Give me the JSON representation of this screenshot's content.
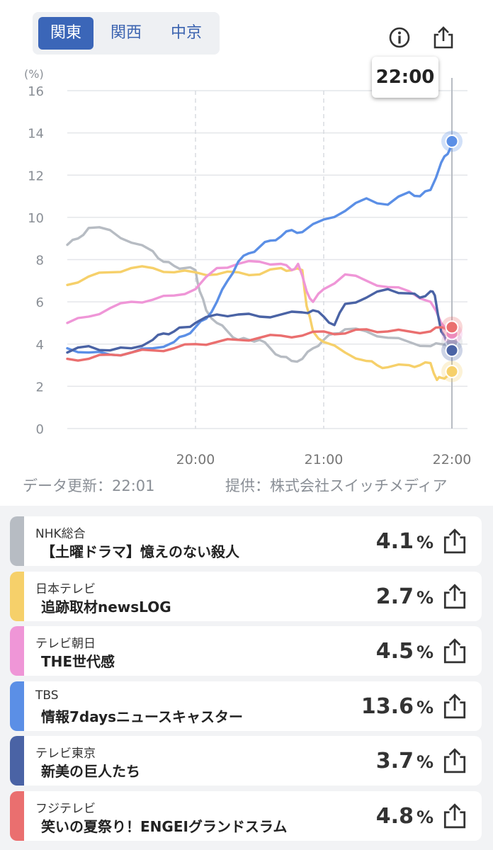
{
  "tabs": [
    "関東",
    "関西",
    "中京"
  ],
  "active_tab": 0,
  "icons": {
    "info": "info-icon",
    "share": "share-icon"
  },
  "tooltip": "22:00",
  "footer": {
    "updated": "データ更新：22:01",
    "provider": "提供：株式会社スイッチメディア"
  },
  "chart_data": {
    "type": "line",
    "ylabel": "(%)",
    "ylim": [
      0,
      16
    ],
    "yticks": [
      0,
      2,
      4,
      6,
      8,
      10,
      12,
      14,
      16
    ],
    "xticks": [
      "20:00",
      "21:00",
      "22:00"
    ],
    "x_range": [
      "19:00",
      "22:00"
    ],
    "grid": true,
    "series": [
      {
        "name": "NHK総合",
        "color": "#b7bcc3",
        "x": [
          0,
          5,
          10,
          20,
          30,
          40,
          45,
          50,
          55,
          60,
          62,
          65,
          70,
          75,
          80,
          85,
          90,
          95,
          100,
          105,
          110,
          115,
          120,
          125,
          130,
          140,
          150,
          160,
          170,
          175,
          180
        ],
        "y": [
          8.7,
          9.0,
          9.5,
          9.4,
          8.8,
          8.4,
          7.9,
          7.7,
          7.6,
          7.5,
          6.5,
          5.6,
          5.0,
          4.6,
          4.2,
          4.2,
          4.2,
          3.8,
          3.4,
          3.2,
          3.3,
          3.8,
          4.2,
          4.5,
          4.7,
          4.6,
          4.3,
          4.1,
          3.9,
          4.0,
          4.1
        ]
      },
      {
        "name": "日本テレビ",
        "color": "#f6d06a",
        "x": [
          0,
          10,
          20,
          30,
          40,
          50,
          60,
          70,
          80,
          90,
          100,
          105,
          110,
          112,
          115,
          120,
          130,
          140,
          145,
          150,
          160,
          165,
          170,
          173,
          175,
          178,
          180
        ],
        "y": [
          6.8,
          7.2,
          7.4,
          7.6,
          7.6,
          7.4,
          7.4,
          7.3,
          7.4,
          7.3,
          7.6,
          7.5,
          7.5,
          5.8,
          4.6,
          4.1,
          3.6,
          3.2,
          3.0,
          2.9,
          3.0,
          3.0,
          3.1,
          2.3,
          2.4,
          2.5,
          2.7
        ]
      },
      {
        "name": "テレビ朝日",
        "color": "#ef96d7",
        "x": [
          0,
          10,
          20,
          30,
          40,
          50,
          60,
          70,
          80,
          90,
          100,
          105,
          108,
          112,
          115,
          120,
          130,
          140,
          150,
          160,
          170,
          175,
          180
        ],
        "y": [
          5.0,
          5.3,
          5.7,
          6.0,
          6.1,
          6.3,
          6.6,
          7.6,
          7.8,
          7.9,
          7.8,
          7.5,
          7.8,
          6.5,
          6.0,
          6.6,
          7.3,
          7.0,
          6.7,
          6.5,
          6.0,
          5.0,
          4.5
        ]
      },
      {
        "name": "TBS",
        "color": "#5b8fe6",
        "x": [
          0,
          10,
          20,
          30,
          40,
          50,
          55,
          60,
          65,
          70,
          75,
          80,
          85,
          90,
          95,
          100,
          105,
          110,
          120,
          130,
          140,
          150,
          160,
          165,
          170,
          175,
          178,
          180
        ],
        "y": [
          3.8,
          3.6,
          3.5,
          3.6,
          3.8,
          4.1,
          4.4,
          4.8,
          5.2,
          6.0,
          7.0,
          7.9,
          8.3,
          8.6,
          8.9,
          9.1,
          9.4,
          9.3,
          9.9,
          10.3,
          10.9,
          10.6,
          11.2,
          11.0,
          11.3,
          12.6,
          13.0,
          13.6
        ]
      },
      {
        "name": "テレビ東京",
        "color": "#4a63a5",
        "x": [
          0,
          10,
          20,
          30,
          40,
          45,
          50,
          55,
          60,
          70,
          80,
          90,
          100,
          110,
          115,
          120,
          125,
          130,
          140,
          150,
          160,
          165,
          170,
          172,
          175,
          178,
          180
        ],
        "y": [
          3.6,
          3.9,
          3.7,
          3.8,
          4.2,
          4.5,
          4.6,
          4.8,
          5.0,
          5.4,
          5.4,
          5.3,
          5.4,
          5.5,
          5.6,
          5.3,
          4.9,
          5.9,
          6.2,
          6.6,
          6.4,
          6.2,
          6.5,
          6.3,
          4.6,
          4.0,
          3.7
        ]
      },
      {
        "name": "フジテレビ",
        "color": "#ea6f6f",
        "x": [
          0,
          10,
          20,
          30,
          40,
          50,
          60,
          70,
          80,
          90,
          100,
          110,
          120,
          130,
          140,
          150,
          160,
          170,
          175,
          180
        ],
        "y": [
          3.3,
          3.3,
          3.5,
          3.6,
          3.7,
          3.8,
          4.0,
          4.1,
          4.2,
          4.3,
          4.4,
          4.4,
          4.6,
          4.5,
          4.7,
          4.6,
          4.6,
          4.6,
          4.8,
          4.8
        ]
      }
    ]
  },
  "programs": [
    {
      "channel": "NHK総合",
      "title": "【土曜ドラマ】憶えのない殺人",
      "value": "4.1",
      "unit": "%",
      "color": "#b7bcc3"
    },
    {
      "channel": "日本テレビ",
      "title": "追跡取材newsLOG",
      "value": "2.7",
      "unit": "%",
      "color": "#f6d06a"
    },
    {
      "channel": "テレビ朝日",
      "title": "THE世代感",
      "value": "4.5",
      "unit": "%",
      "color": "#ef96d7"
    },
    {
      "channel": "TBS",
      "title": "情報7daysニュースキャスター",
      "value": "13.6",
      "unit": "%",
      "color": "#5b8fe6"
    },
    {
      "channel": "テレビ東京",
      "title": "新美の巨人たち",
      "value": "3.7",
      "unit": "%",
      "color": "#4a63a5"
    },
    {
      "channel": "フジテレビ",
      "title": "笑いの夏祭り！ENGEIグランドスラム",
      "value": "4.8",
      "unit": "%",
      "color": "#ea6f6f"
    }
  ]
}
